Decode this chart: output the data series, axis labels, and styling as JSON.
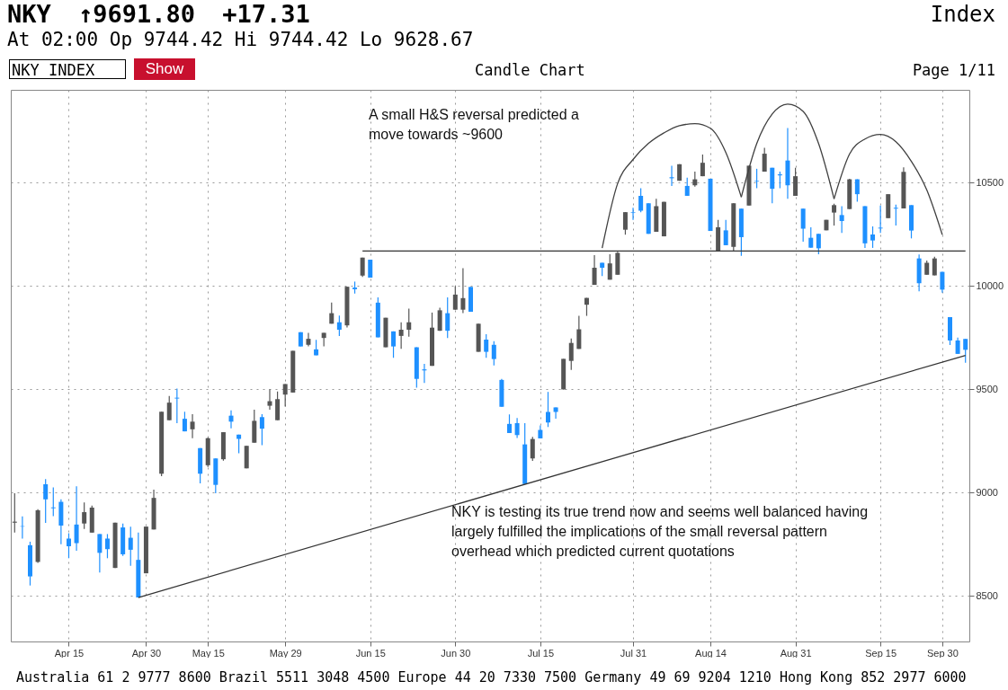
{
  "chart_data": {
    "type": "candlestick",
    "title": "NKY ↑9691.80 +17.31",
    "subtitle": "At 02:00 Op 9744.42 Hi 9744.42 Lo 9628.67",
    "annotations": [
      "A small H&S reversal predicted a move towards ~9600",
      "NKY is testing its true trend now and seems well balanced having largely fulfilled the implications of the small reversal pattern overhead which predicted current quotations",
      "Index",
      "NKY INDEX",
      "Show",
      "Candle Chart",
      "Page 1/11",
      "Australia 61 2 9777 8600 Brazil 5511 3048 4500 Europe 44 20 7330 7500 Germany 49 69 9204 1210 Hong Kong 852 2977 6000"
    ],
    "categories": [
      null,
      null,
      null,
      null,
      null,
      null,
      null,
      "Apr 15",
      null,
      null,
      null,
      null,
      null,
      null,
      null,
      null,
      null,
      "Apr 30",
      null,
      null,
      null,
      null,
      null,
      null,
      null,
      "May 15",
      null,
      null,
      null,
      null,
      null,
      null,
      null,
      null,
      null,
      "May 29",
      null,
      null,
      null,
      null,
      null,
      null,
      null,
      null,
      null,
      null,
      "Jun 15",
      null,
      null,
      null,
      null,
      null,
      null,
      null,
      null,
      null,
      null,
      "Jun 30",
      null,
      null,
      null,
      null,
      null,
      null,
      null,
      null,
      null,
      null,
      "Jul 15",
      null,
      null,
      null,
      null,
      null,
      null,
      null,
      null,
      null,
      null,
      null,
      "Jul 31",
      null,
      null,
      null,
      null,
      null,
      null,
      null,
      null,
      null,
      "Aug 14",
      null,
      null,
      null,
      null,
      null,
      null,
      null,
      null,
      null,
      null,
      "Aug 31",
      null,
      null,
      null,
      null,
      null,
      null,
      null,
      null,
      null,
      null,
      "Sep 15",
      null,
      null,
      null,
      null,
      null,
      null,
      null,
      "Sep 30",
      null,
      null,
      null
    ],
    "ohlc": [
      [
        8855,
        8997,
        8807,
        8860
      ],
      [
        8838,
        8885,
        8778,
        8836
      ],
      [
        8746,
        8763,
        8551,
        8595
      ],
      [
        8665,
        8920,
        8661,
        8915
      ],
      [
        9041,
        9066,
        8854,
        8968
      ],
      [
        8929,
        9026,
        8887,
        8925
      ],
      [
        8956,
        8968,
        8751,
        8841
      ],
      [
        8778,
        8804,
        8683,
        8741
      ],
      [
        8846,
        9031,
        8719,
        8756
      ],
      [
        8851,
        8953,
        8825,
        8906
      ],
      [
        8807,
        8938,
        8807,
        8928
      ],
      [
        8800,
        8800,
        8614,
        8709
      ],
      [
        8778,
        8800,
        8683,
        8727
      ],
      [
        8636,
        8855,
        8636,
        8855
      ],
      [
        8832,
        8851,
        8694,
        8702
      ],
      [
        8782,
        8836,
        8646,
        8724
      ],
      [
        8675,
        8807,
        8493,
        8493
      ],
      [
        8610,
        8836,
        8610,
        8836
      ],
      [
        8822,
        9015,
        8822,
        8975
      ],
      [
        9092,
        9392,
        9080,
        9392
      ],
      [
        9351,
        9468,
        9351,
        9436
      ],
      [
        9460,
        9504,
        9337,
        9456
      ],
      [
        9358,
        9392,
        9297,
        9297
      ],
      [
        9307,
        9380,
        9264,
        9344
      ],
      [
        9216,
        9216,
        9045,
        9092
      ],
      [
        9133,
        9267,
        9125,
        9264
      ],
      [
        9166,
        9166,
        8998,
        9038
      ],
      [
        9162,
        9293,
        9155,
        9293
      ],
      [
        9373,
        9399,
        9312,
        9344
      ],
      [
        9281,
        9281,
        9191,
        9261
      ],
      [
        9118,
        9227,
        9118,
        9227
      ],
      [
        9242,
        9402,
        9242,
        9348
      ],
      [
        9366,
        9380,
        9230,
        9310
      ],
      [
        9421,
        9501,
        9402,
        9443
      ],
      [
        9351,
        9490,
        9351,
        9453
      ],
      [
        9475,
        9526,
        9417,
        9526
      ],
      [
        9485,
        9687,
        9485,
        9687
      ],
      [
        9777,
        9777,
        9708,
        9708
      ],
      [
        9716,
        9774,
        9708,
        9745
      ],
      [
        9694,
        9740,
        9665,
        9665
      ],
      [
        9749,
        9774,
        9708,
        9774
      ],
      [
        9818,
        9920,
        9818,
        9869
      ],
      [
        9825,
        9857,
        9759,
        9789
      ],
      [
        9810,
        9997,
        9800,
        9997
      ],
      [
        9993,
        10022,
        9964,
        9985
      ],
      [
        10051,
        10138,
        10044,
        10138
      ],
      [
        10128,
        10128,
        10041,
        10041
      ],
      [
        9920,
        9945,
        9752,
        9752
      ],
      [
        9704,
        9847,
        9704,
        9847
      ],
      [
        9781,
        9781,
        9653,
        9708
      ],
      [
        9759,
        9825,
        9697,
        9789
      ],
      [
        9789,
        9891,
        9755,
        9825
      ],
      [
        9704,
        9704,
        9509,
        9551
      ],
      [
        9597,
        9624,
        9531,
        9592
      ],
      [
        9614,
        9872,
        9614,
        9799
      ],
      [
        9784,
        9895,
        9784,
        9883
      ],
      [
        9869,
        9945,
        9749,
        9784
      ],
      [
        9886,
        10000,
        9886,
        9959
      ],
      [
        9886,
        10087,
        9869,
        9942
      ],
      [
        9996,
        9996,
        9876,
        9876
      ],
      [
        9682,
        9818,
        9682,
        9818
      ],
      [
        9741,
        9767,
        9653,
        9682
      ],
      [
        9716,
        9733,
        9616,
        9647
      ],
      [
        9546,
        9551,
        9416,
        9416
      ],
      [
        9333,
        9379,
        9289,
        9289
      ],
      [
        9337,
        9362,
        9265,
        9279
      ],
      [
        9234,
        9337,
        9042,
        9042
      ],
      [
        9166,
        9270,
        9154,
        9260
      ],
      [
        9304,
        9326,
        9263,
        9263
      ],
      [
        9391,
        9488,
        9318,
        9340
      ],
      [
        9413,
        9413,
        9358,
        9391
      ],
      [
        9500,
        9648,
        9500,
        9648
      ],
      [
        9638,
        9747,
        9594,
        9725
      ],
      [
        9696,
        9856,
        9696,
        9791
      ],
      [
        9910,
        9943,
        9856,
        9943
      ],
      [
        10006,
        10150,
        10006,
        10089
      ],
      [
        10113,
        10113,
        10049,
        10089
      ],
      [
        10031,
        10154,
        10031,
        10110
      ],
      [
        10055,
        10166,
        10055,
        10161
      ],
      [
        10273,
        10358,
        10249,
        10358
      ],
      [
        10357,
        10379,
        10321,
        10354
      ],
      [
        10437,
        10474,
        10358,
        10365
      ],
      [
        10401,
        10401,
        10253,
        10253
      ],
      [
        10263,
        10423,
        10263,
        10387
      ],
      [
        10241,
        10408,
        10241,
        10408
      ],
      [
        10527,
        10583,
        10485,
        10522
      ],
      [
        10510,
        10590,
        10510,
        10590
      ],
      [
        10485,
        10525,
        10437,
        10437
      ],
      [
        10488,
        10554,
        10481,
        10517
      ],
      [
        10532,
        10637,
        10532,
        10597
      ],
      [
        10520,
        10520,
        10267,
        10267
      ],
      [
        10169,
        10321,
        10169,
        10285
      ],
      [
        10270,
        10321,
        10198,
        10198
      ],
      [
        10190,
        10401,
        10169,
        10401
      ],
      [
        10375,
        10375,
        10147,
        10237
      ],
      [
        10390,
        10583,
        10390,
        10583
      ],
      [
        10509,
        10568,
        10474,
        10506
      ],
      [
        10554,
        10670,
        10554,
        10641
      ],
      [
        10573,
        10573,
        10401,
        10471
      ],
      [
        10541,
        10554,
        10474,
        10536
      ],
      [
        10608,
        10765,
        10423,
        10488
      ],
      [
        10437,
        10573,
        10437,
        10532
      ],
      [
        10375,
        10375,
        10215,
        10278
      ],
      [
        10234,
        10285,
        10186,
        10186
      ],
      [
        10253,
        10253,
        10154,
        10183
      ],
      [
        10270,
        10321,
        10270,
        10321
      ],
      [
        10356,
        10399,
        10293,
        10392
      ],
      [
        10344,
        10387,
        10257,
        10315
      ],
      [
        10373,
        10520,
        10373,
        10517
      ],
      [
        10517,
        10517,
        10409,
        10445
      ],
      [
        10387,
        10387,
        10185,
        10207
      ],
      [
        10250,
        10289,
        10185,
        10221
      ],
      [
        10283,
        10390,
        10257,
        10279
      ],
      [
        10329,
        10445,
        10329,
        10445
      ],
      [
        10379,
        10395,
        10293,
        10375
      ],
      [
        10376,
        10575,
        10376,
        10553
      ],
      [
        10392,
        10392,
        10231,
        10269
      ],
      [
        10134,
        10153,
        9975,
        10014
      ],
      [
        10055,
        10124,
        10055,
        10113
      ],
      [
        10052,
        10142,
        10052,
        10134
      ],
      [
        10069,
        10069,
        9968,
        9983
      ],
      [
        9850,
        9850,
        9715,
        9737
      ],
      [
        9737,
        9751,
        9672,
        9672
      ],
      [
        9744.42,
        9744.42,
        9628.67,
        9691.8
      ]
    ],
    "colors": [
      "#555555",
      "#1e90ff",
      "#1e90ff",
      "#555555",
      "#1e90ff",
      "#1e90ff",
      "#1e90ff",
      "#1e90ff",
      "#1e90ff",
      "#555555",
      "#555555",
      "#1e90ff",
      "#1e90ff",
      "#555555",
      "#1e90ff",
      "#1e90ff",
      "#1e90ff",
      "#555555",
      "#555555",
      "#555555",
      "#555555",
      "#1e90ff",
      "#1e90ff",
      "#555555",
      "#1e90ff",
      "#555555",
      "#1e90ff",
      "#555555",
      "#1e90ff",
      "#1e90ff",
      "#555555",
      "#555555",
      "#1e90ff",
      "#555555",
      "#555555",
      "#555555",
      "#555555",
      "#1e90ff",
      "#555555",
      "#1e90ff",
      "#555555",
      "#555555",
      "#1e90ff",
      "#555555",
      "#1e90ff",
      "#555555",
      "#1e90ff",
      "#1e90ff",
      "#555555",
      "#1e90ff",
      "#555555",
      "#555555",
      "#1e90ff",
      "#1e90ff",
      "#555555",
      "#555555",
      "#1e90ff",
      "#555555",
      "#555555",
      "#1e90ff",
      "#555555",
      "#1e90ff",
      "#1e90ff",
      "#1e90ff",
      "#1e90ff",
      "#1e90ff",
      "#1e90ff",
      "#555555",
      "#1e90ff",
      "#1e90ff",
      "#1e90ff",
      "#555555",
      "#555555",
      "#555555",
      "#555555",
      "#555555",
      "#1e90ff",
      "#555555",
      "#555555",
      "#555555",
      "#1e90ff",
      "#1e90ff",
      "#1e90ff",
      "#555555",
      "#555555",
      "#1e90ff",
      "#555555",
      "#1e90ff",
      "#555555",
      "#555555",
      "#1e90ff",
      "#555555",
      "#1e90ff",
      "#555555",
      "#1e90ff",
      "#555555",
      "#1e90ff",
      "#555555",
      "#1e90ff",
      "#1e90ff",
      "#1e90ff",
      "#555555",
      "#1e90ff",
      "#1e90ff",
      "#1e90ff",
      "#555555",
      "#555555",
      "#1e90ff",
      "#555555",
      "#1e90ff",
      "#1e90ff",
      "#1e90ff",
      "#1e90ff",
      "#555555",
      "#1e90ff",
      "#555555",
      "#1e90ff",
      "#1e90ff",
      "#555555",
      "#555555",
      "#1e90ff",
      "#1e90ff",
      "#1e90ff",
      "#1e90ff"
    ],
    "series": [
      {
        "type": "line",
        "color": "#333333",
        "values": [
          null,
          null,
          null,
          null,
          null,
          null,
          null,
          null,
          null,
          null,
          null,
          null,
          null,
          null,
          null,
          null,
          8493,
          null,
          null,
          null,
          null,
          null,
          null,
          null,
          null,
          null,
          null,
          null,
          null,
          null,
          null,
          null,
          null,
          null,
          null,
          null,
          null,
          null,
          null,
          null,
          null,
          null,
          null,
          null,
          null,
          null,
          null,
          null,
          null,
          null,
          null,
          null,
          null,
          null,
          null,
          null,
          null,
          null,
          null,
          null,
          null,
          null,
          null,
          null,
          null,
          null,
          null,
          null,
          null,
          null,
          null,
          null,
          null,
          null,
          null,
          null,
          null,
          null,
          null,
          null,
          null,
          null,
          null,
          null,
          null,
          null,
          null,
          null,
          null,
          null,
          null,
          null,
          null,
          null,
          null,
          null,
          null,
          null,
          null,
          null,
          null,
          null,
          null,
          null,
          null,
          null,
          null,
          null,
          null,
          null,
          null,
          null,
          null,
          null,
          null,
          null,
          null,
          null,
          null,
          null,
          null,
          null,
          null,
          9665
        ]
      },
      {
        "type": "line",
        "color": "#333333",
        "values": [
          null,
          null,
          null,
          null,
          null,
          null,
          null,
          null,
          null,
          null,
          null,
          null,
          null,
          null,
          null,
          null,
          null,
          null,
          null,
          null,
          null,
          null,
          null,
          null,
          null,
          null,
          null,
          null,
          null,
          null,
          null,
          null,
          null,
          null,
          null,
          null,
          null,
          null,
          null,
          null,
          null,
          null,
          null,
          null,
          null,
          10170,
          null,
          null,
          null,
          null,
          null,
          null,
          null,
          null,
          null,
          null,
          null,
          null,
          null,
          null,
          null,
          null,
          null,
          null,
          null,
          null,
          null,
          null,
          null,
          null,
          null,
          null,
          null,
          null,
          null,
          null,
          null,
          null,
          null,
          null,
          null,
          null,
          null,
          null,
          null,
          null,
          null,
          null,
          null,
          null,
          null,
          null,
          null,
          null,
          null,
          null,
          null,
          null,
          null,
          null,
          null,
          null,
          null,
          null,
          null,
          null,
          null,
          null,
          null,
          null,
          null,
          null,
          null,
          null,
          null,
          null,
          null,
          null,
          null,
          null,
          null,
          null,
          null,
          10170
        ]
      },
      {
        "type": "line",
        "color": "#404040",
        "values": [
          null,
          null,
          null,
          null,
          null,
          null,
          null,
          null,
          null,
          null,
          null,
          null,
          null,
          null,
          null,
          null,
          null,
          null,
          null,
          null,
          null,
          null,
          null,
          null,
          null,
          null,
          null,
          null,
          null,
          null,
          null,
          null,
          null,
          null,
          null,
          null,
          null,
          null,
          null,
          null,
          null,
          null,
          null,
          null,
          null,
          null,
          null,
          null,
          null,
          null,
          null,
          null,
          null,
          null,
          null,
          null,
          null,
          null,
          null,
          null,
          null,
          null,
          null,
          null,
          null,
          null,
          null,
          null,
          null,
          null,
          null,
          null,
          null,
          null,
          null,
          null,
          10184,
          null,
          10496,
          null,
          10613,
          null,
          10691,
          null,
          10742,
          null,
          10777,
          null,
          10786,
          null,
          10764,
          null,
          10647,
          null,
          10431,
          null,
          null,
          null,
          null,
          null,
          null,
          null,
          null,
          null,
          null,
          null,
          null,
          null,
          null,
          null,
          null,
          null,
          null,
          null,
          null,
          null,
          null,
          null,
          null,
          null,
          null,
          null,
          null,
          null
        ]
      },
      {
        "type": "line",
        "color": "#404040",
        "values": [
          null,
          null,
          null,
          null,
          null,
          null,
          null,
          null,
          null,
          null,
          null,
          null,
          null,
          null,
          null,
          null,
          null,
          null,
          null,
          null,
          null,
          null,
          null,
          null,
          null,
          null,
          null,
          null,
          null,
          null,
          null,
          null,
          null,
          null,
          null,
          null,
          null,
          null,
          null,
          null,
          null,
          null,
          null,
          null,
          null,
          null,
          null,
          null,
          null,
          null,
          null,
          null,
          null,
          null,
          null,
          null,
          null,
          null,
          null,
          null,
          null,
          null,
          null,
          null,
          null,
          null,
          null,
          null,
          null,
          null,
          null,
          null,
          null,
          null,
          null,
          null,
          null,
          null,
          null,
          null,
          null,
          null,
          null,
          null,
          null,
          null,
          null,
          null,
          null,
          null,
          null,
          null,
          null,
          null,
          10431,
          null,
          10690,
          null,
          10833,
          null,
          10881,
          null,
          10846,
          null,
          10690,
          null,
          10422,
          null,
          null,
          null,
          null,
          null,
          null,
          null,
          null,
          null,
          null,
          null,
          null,
          null,
          null,
          null,
          null,
          null
        ]
      },
      {
        "type": "line",
        "color": "#404040",
        "values": [
          null,
          null,
          null,
          null,
          null,
          null,
          null,
          null,
          null,
          null,
          null,
          null,
          null,
          null,
          null,
          null,
          null,
          null,
          null,
          null,
          null,
          null,
          null,
          null,
          null,
          null,
          null,
          null,
          null,
          null,
          null,
          null,
          null,
          null,
          null,
          null,
          null,
          null,
          null,
          null,
          null,
          null,
          null,
          null,
          null,
          null,
          null,
          null,
          null,
          null,
          null,
          null,
          null,
          null,
          null,
          null,
          null,
          null,
          null,
          null,
          null,
          null,
          null,
          null,
          null,
          null,
          null,
          null,
          null,
          null,
          null,
          null,
          null,
          null,
          null,
          null,
          null,
          null,
          null,
          null,
          null,
          null,
          null,
          null,
          null,
          null,
          null,
          null,
          null,
          null,
          null,
          null,
          null,
          null,
          null,
          null,
          null,
          null,
          null,
          null,
          null,
          null,
          null,
          null,
          null,
          null,
          10422,
          null,
          10639,
          null,
          10712,
          null,
          10734,
          null,
          10699,
          null,
          10604,
          null,
          10465,
          null,
          10249,
          null,
          null,
          null
        ]
      }
    ],
    "ylim": [
      8280,
      10950
    ],
    "yticks": [
      8500,
      9000,
      9500,
      10000,
      10500
    ],
    "grid": true
  }
}
